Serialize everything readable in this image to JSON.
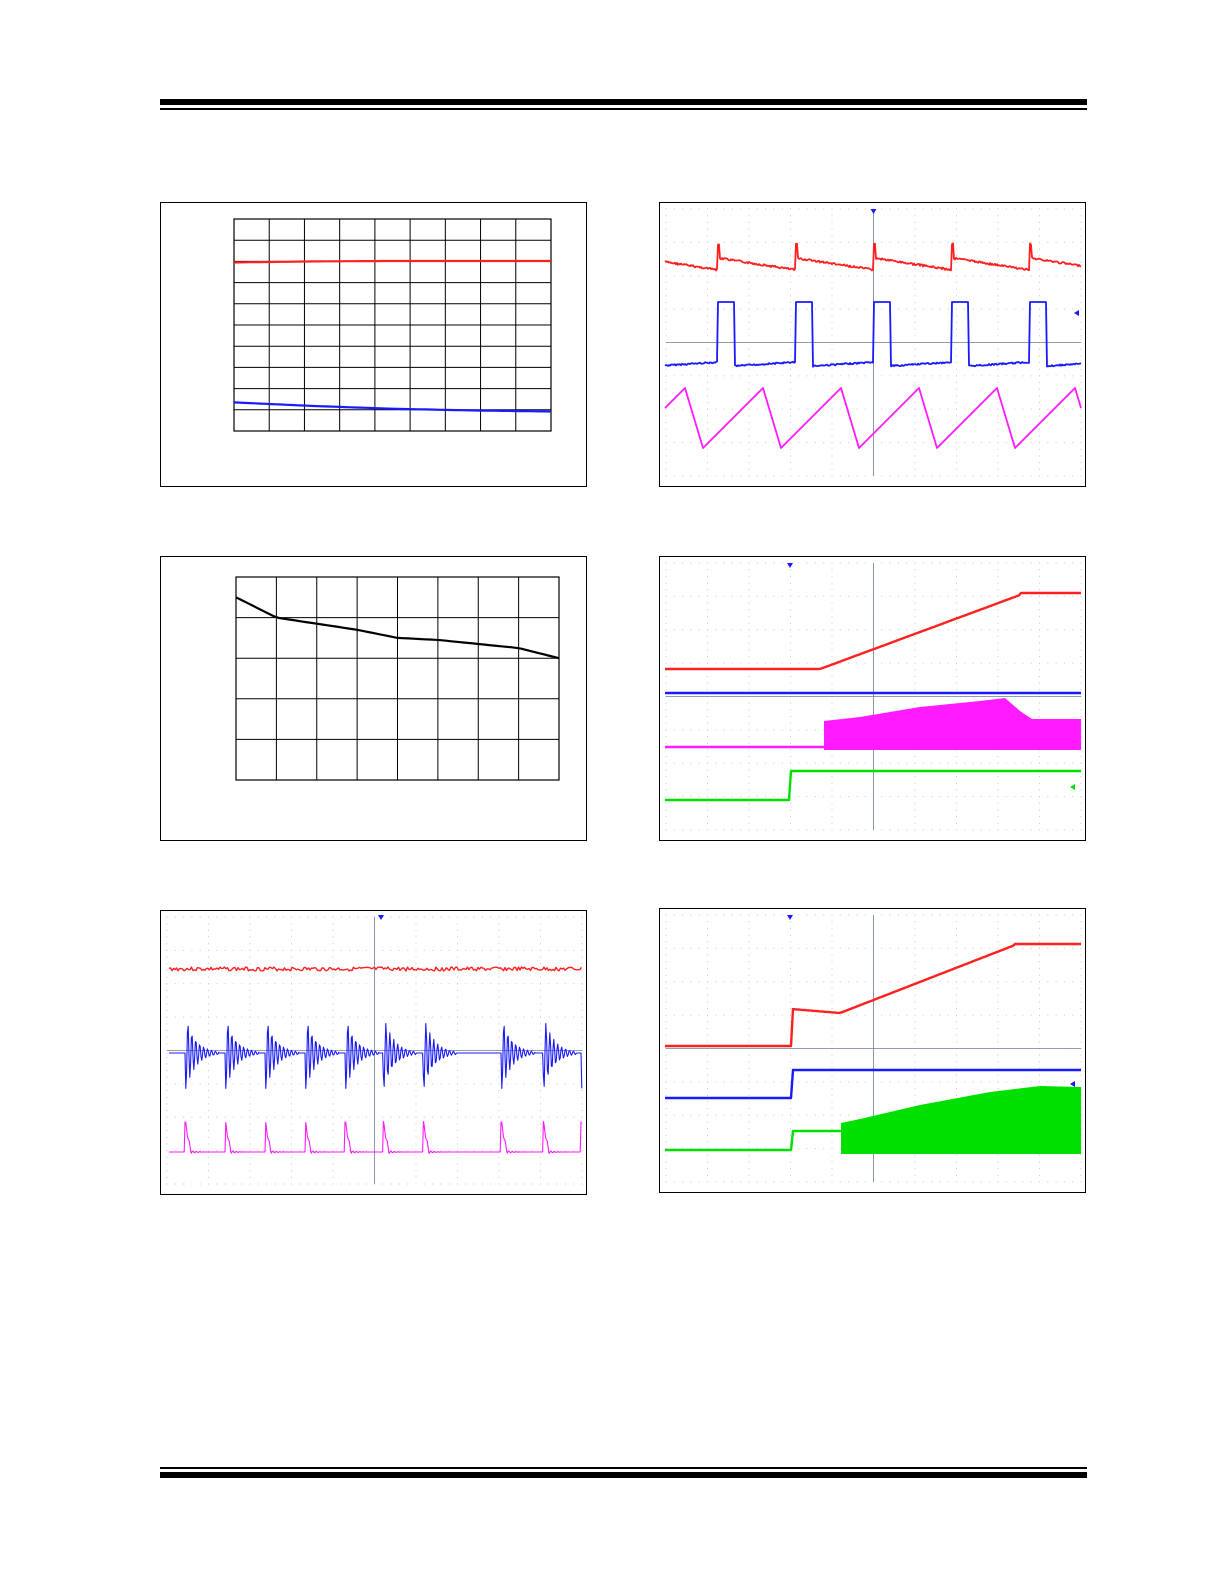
{
  "page": {
    "header_rule": "double-line",
    "footer_rule": "double-line",
    "text_visible": false
  },
  "colors": {
    "red": "#ff2020",
    "blue": "#1a1aff",
    "magenta": "#ff1aff",
    "green": "#00e000",
    "black": "#000000",
    "scope_grid": "#c8c8c8",
    "scope_center": "#6f7f9f"
  },
  "chart_data": [
    {
      "panel": "top-left",
      "type": "line",
      "grid": {
        "cols": 9,
        "rows": 10
      },
      "series": [
        {
          "color": "red",
          "trend": "flat-high",
          "values": [
            0.795,
            0.8,
            0.802,
            0.802,
            0.802
          ]
        },
        {
          "color": "blue",
          "trend": "slow-decline",
          "values": [
            0.135,
            0.118,
            0.105,
            0.097,
            0.092
          ]
        }
      ]
    },
    {
      "panel": "middle-left",
      "type": "line",
      "grid": {
        "cols": 8,
        "rows": 5
      },
      "series": [
        {
          "color": "black",
          "trend": "decreasing",
          "values": [
            0.9,
            0.8,
            0.77,
            0.74,
            0.7,
            0.69,
            0.67,
            0.65,
            0.6
          ]
        }
      ]
    },
    {
      "panel": "bottom-left",
      "type": "line",
      "scope": true,
      "traces": [
        "red",
        "blue",
        "magenta"
      ],
      "description_keys": [
        "noisy-flat",
        "ringing-bursts",
        "spikes"
      ]
    },
    {
      "panel": "top-right",
      "type": "line",
      "scope": true,
      "traces": [
        "red",
        "blue",
        "magenta"
      ],
      "description_keys": [
        "sawtooth-falling",
        "pulses",
        "sawtooth-rising"
      ]
    },
    {
      "panel": "middle-right",
      "type": "line",
      "scope": true,
      "traces": [
        "red",
        "blue",
        "magenta",
        "green"
      ],
      "description_keys": [
        "ramp-up",
        "flat",
        "switching-envelope",
        "step"
      ]
    },
    {
      "panel": "bottom-right",
      "type": "line",
      "scope": true,
      "traces": [
        "red",
        "blue",
        "green"
      ],
      "description_keys": [
        "step-then-ramp",
        "step",
        "step-then-envelope"
      ]
    }
  ]
}
